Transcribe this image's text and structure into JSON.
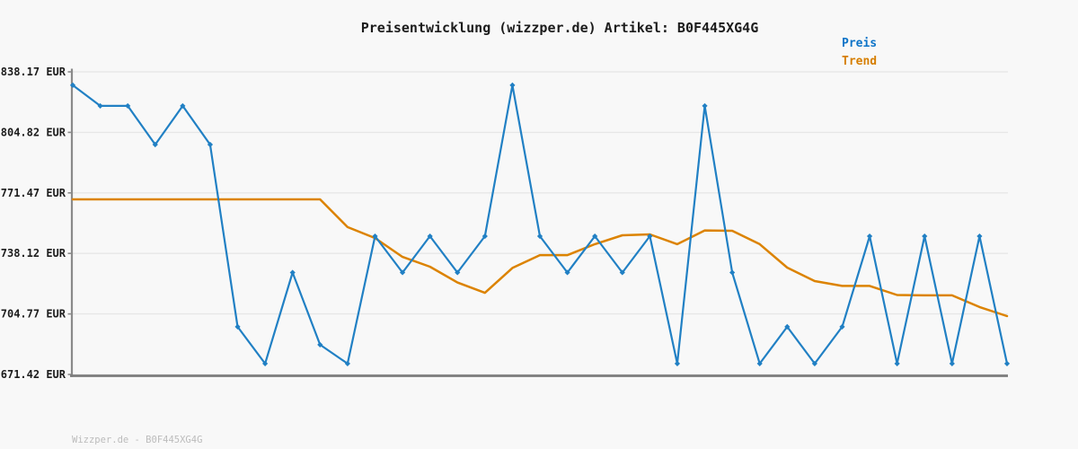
{
  "header": {
    "title": "Preisentwicklung (wizzper.de) Artikel: B0F445XG4G"
  },
  "legend": {
    "items": [
      {
        "label": "Preis",
        "color": "#0d74c8"
      },
      {
        "label": "Trend",
        "color": "#d67e00"
      }
    ]
  },
  "footer": {
    "watermark": "Wizzper.de - B0F445XG4G"
  },
  "colors": {
    "background": "#f8f8f8",
    "gridline": "#e7e7e7",
    "axis": "#8a8a8a",
    "bottom_axis": "#7c7c7c",
    "tick_label": "#1c1c1c",
    "price_line": "#2180c4",
    "trend_line": "#dc8300"
  },
  "chart_data": {
    "type": "line",
    "title": "Preisentwicklung (wizzper.de) Artikel: B0F445XG4G",
    "currency": "EUR",
    "xlabel": "",
    "ylabel": "EUR",
    "ylim": [
      671.42,
      838.17
    ],
    "y_ticks": [
      838.17,
      804.82,
      771.47,
      738.12,
      704.77,
      671.42
    ],
    "y_tick_labels": [
      "838.17 EUR",
      "804.82 EUR",
      "771.47 EUR",
      "738.12 EUR",
      "704.77 EUR",
      "671.42 EUR"
    ],
    "x_tick_labels": [],
    "grid": true,
    "legend_position": "top-right",
    "n_points": 35,
    "series": [
      {
        "name": "Preis",
        "color": "#2180c4",
        "marker": "diamond",
        "values": [
          830.8,
          819.4,
          819.4,
          798.1,
          819.4,
          798.1,
          697.7,
          677.4,
          727.6,
          687.8,
          677.4,
          747.6,
          727.6,
          747.6,
          727.6,
          747.6,
          830.8,
          747.6,
          727.6,
          747.6,
          727.6,
          747.6,
          677.4,
          819.4,
          727.6,
          677.4,
          697.7,
          677.4,
          697.7,
          747.6,
          677.4,
          747.6,
          677.4,
          747.6,
          677.4
        ]
      },
      {
        "name": "Trend",
        "color": "#dc8300",
        "marker": "none",
        "values": [
          767.9,
          767.9,
          767.9,
          767.9,
          767.9,
          767.9,
          767.9,
          767.9,
          767.9,
          767.9,
          752.6,
          746.6,
          736.2,
          730.8,
          722.1,
          716.4,
          730.1,
          737.2,
          737.2,
          743.2,
          748.1,
          748.6,
          743.2,
          750.8,
          750.6,
          743.2,
          730.3,
          722.9,
          720.2,
          720.2,
          715.2,
          715.0,
          715.0,
          708.6,
          703.6
        ]
      }
    ]
  }
}
